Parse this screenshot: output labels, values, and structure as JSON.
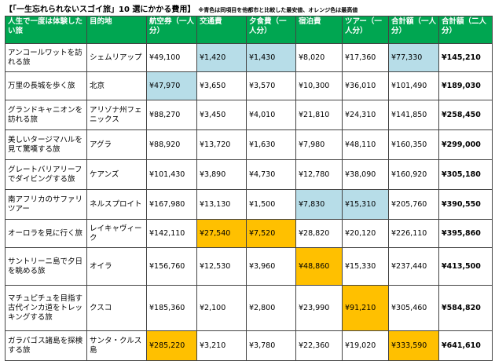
{
  "title": "【「一生忘れられないスゴイ旅」10 選にかかる費用】",
  "note": "※青色は同項目を他都市と比較した最安値、オレンジ色は最高値",
  "table": {
    "header": [
      "人生で一度は体験したい旅",
      "目的地",
      "航空券（一人分）",
      "交通費",
      "夕食費（一人分）",
      "宿泊費",
      "ツアー（一人分）",
      "合計額（一人分）",
      "合計額（二人分）"
    ],
    "rows": [
      [
        "アンコールワットを訪れる旅",
        "シェムリアップ",
        "¥49,100",
        "¥1,420",
        "¥1,430",
        "¥8,020",
        "¥17,360",
        "¥77,330",
        "¥145,210"
      ],
      [
        "万里の長城を歩く旅",
        "北京",
        "¥47,970",
        "¥3,650",
        "¥3,570",
        "¥10,300",
        "¥36,010",
        "¥101,490",
        "¥189,030"
      ],
      [
        "グランドキャニオンを訪れる旅",
        "アリゾナ州フェニックス",
        "¥88,270",
        "¥3,450",
        "¥4,010",
        "¥21,810",
        "¥24,310",
        "¥141,850",
        "¥258,450"
      ],
      [
        "美しいタージマハルを見て驚嘆する旅",
        "アグラ",
        "¥88,920",
        "¥13,720",
        "¥1,630",
        "¥7,980",
        "¥48,110",
        "¥160,350",
        "¥299,000"
      ],
      [
        "グレートバリアリーフでダイビングする旅",
        "ケアンズ",
        "¥101,430",
        "¥3,890",
        "¥4,730",
        "¥12,780",
        "¥38,090",
        "¥160,920",
        "¥305,180"
      ],
      [
        "南アフリカのサファリツアー",
        "ネルスプロイト",
        "¥167,980",
        "¥13,130",
        "¥1,500",
        "¥7,830",
        "¥15,310",
        "¥205,760",
        "¥390,550"
      ],
      [
        "オーロラを見に行く旅",
        "レイキャヴィーク",
        "¥142,110",
        "¥27,540",
        "¥7,520",
        "¥28,820",
        "¥20,120",
        "¥226,110",
        "¥395,860"
      ],
      [
        "サントリーニ島で夕日を眺める旅",
        "オイラ",
        "¥156,760",
        "¥12,530",
        "¥3,960",
        "¥48,860",
        "¥15,330",
        "¥237,440",
        "¥413,500"
      ],
      [
        "マチュピチュを目指す古代インカ道をトレッキングする旅",
        "クスコ",
        "¥185,360",
        "¥2,100",
        "¥2,800",
        "¥23,990",
        "¥91,210",
        "¥305,460",
        "¥584,820"
      ],
      [
        "ガラパゴス諸島を探検する旅",
        "サンタ・クルス島",
        "¥285,220",
        "¥3,210",
        "¥3,780",
        "¥22,360",
        "¥19,020",
        "¥333,590",
        "¥641,610"
      ]
    ],
    "highlights": [
      [
        0,
        3,
        "#b7dde8"
      ],
      [
        0,
        4,
        "#b7dde8"
      ],
      [
        0,
        7,
        "#b7dde8"
      ],
      [
        1,
        2,
        "#b7dde8"
      ],
      [
        5,
        5,
        "#b7dde8"
      ],
      [
        5,
        6,
        "#b7dde8"
      ],
      [
        6,
        3,
        "#ffc000"
      ],
      [
        6,
        4,
        "#ffc000"
      ],
      [
        7,
        5,
        "#ffc000"
      ],
      [
        8,
        6,
        "#ffc000"
      ],
      [
        9,
        2,
        "#ffc000"
      ],
      [
        9,
        7,
        "#ffc000"
      ]
    ]
  }
}
